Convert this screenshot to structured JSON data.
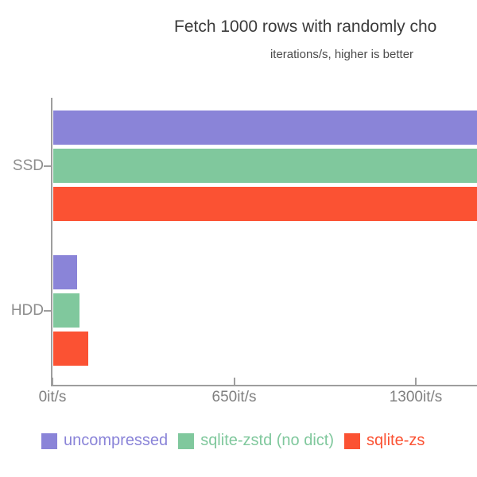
{
  "chart_data": {
    "type": "bar",
    "orientation": "horizontal",
    "title": "Fetch 1000 rows with randomly cho",
    "subtitle": "iterations/s, higher is better",
    "categories": [
      "SSD",
      "HDD"
    ],
    "series": [
      {
        "name": "uncompressed",
        "color": "#8a84d8",
        "values": [
          1600,
          85
        ]
      },
      {
        "name": "sqlite-zstd (no dict)",
        "color": "#80c89d",
        "values": [
          1600,
          94
        ]
      },
      {
        "name": "sqlite-zs",
        "color": "#fb5233",
        "values": [
          1600,
          125
        ]
      }
    ],
    "x_ticks": [
      {
        "value": 0,
        "label": "0it/s"
      },
      {
        "value": 650,
        "label": "650it/s"
      },
      {
        "value": 1300,
        "label": "1300it/s"
      }
    ],
    "x_unit": "it/s",
    "x_max_visible": 1519,
    "ssd_bars_clipped_at_right_edge": true,
    "title_and_legend_clipped_at_right_edge": true,
    "legend_position": "bottom",
    "grid": false
  }
}
